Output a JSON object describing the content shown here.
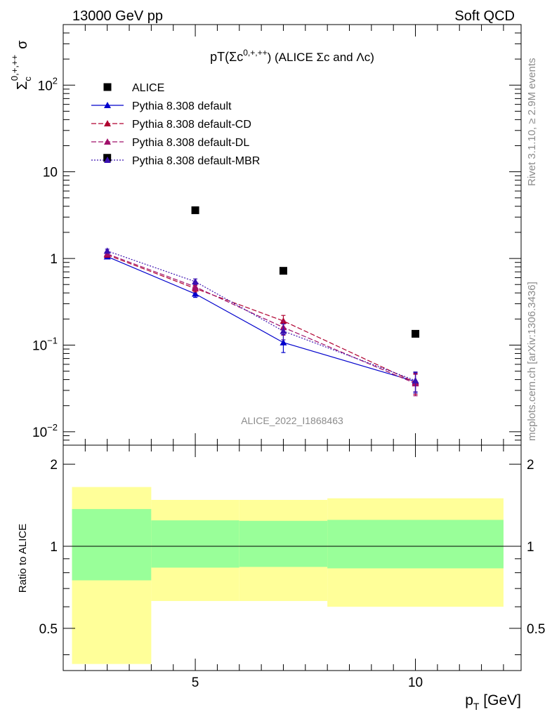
{
  "header": {
    "left": "13000 GeV pp",
    "right": "Soft QCD"
  },
  "side": {
    "rivet": "Rivet 3.1.10, ≥ 2.9M events",
    "mcplots": "mcplots.cern.ch [arXiv:1306.3436]"
  },
  "chart_data": [
    {
      "type": "scatter",
      "title": "pT(Σc0,+,++) (ALICE Σc and Λc)",
      "title_main": "pT(Σc",
      "title_sup": "0,+,++",
      "title_tail": ") (ALICE Σc and Λc)",
      "ylabel": "Σc0,+,++ σ",
      "ylabel_base": "Σ",
      "ylabel_sub": "c",
      "ylabel_sup": "0,+,++",
      "ylabel_tail": "σ",
      "xlabel": "",
      "yscale": "log",
      "xlim": [
        2,
        12.4
      ],
      "ylim": [
        0.007,
        500
      ],
      "watermark": "ALICE_2022_I1868463",
      "y_ticks": [
        {
          "v": 0.01,
          "base": "10",
          "exp": "−2"
        },
        {
          "v": 0.1,
          "base": "10",
          "exp": "−1"
        },
        {
          "v": 1,
          "base": "1",
          "exp": ""
        },
        {
          "v": 10,
          "base": "10",
          "exp": ""
        },
        {
          "v": 100,
          "base": "10",
          "exp": "2"
        }
      ],
      "legend_position": "top-left",
      "series": [
        {
          "name": "ALICE",
          "kind": "data",
          "color": "#000000",
          "marker": "square",
          "x": [
            3,
            5,
            7,
            10
          ],
          "y": [
            14.5,
            3.6,
            0.72,
            0.135
          ],
          "yerr": [
            0,
            0,
            0,
            0
          ]
        },
        {
          "name": "Pythia 8.308 default",
          "kind": "mc",
          "color": "#0000cc",
          "dash": "",
          "marker": "triangle",
          "x": [
            3,
            5,
            7,
            10
          ],
          "y": [
            1.05,
            0.39,
            0.107,
            0.038
          ],
          "yerr": [
            0.06,
            0.035,
            0.025,
            0.01
          ]
        },
        {
          "name": "Pythia 8.308 default-CD",
          "kind": "mc",
          "color": "#b00030",
          "dash": "7,3",
          "marker": "triangle",
          "x": [
            3,
            5,
            7,
            10
          ],
          "y": [
            1.1,
            0.45,
            0.19,
            0.037
          ],
          "yerr": [
            0.06,
            0.04,
            0.03,
            0.01
          ]
        },
        {
          "name": "Pythia 8.308 default-DL",
          "kind": "mc",
          "color": "#a0106a",
          "dash": "7,3",
          "marker": "triangle",
          "x": [
            3,
            5,
            7,
            10
          ],
          "y": [
            1.13,
            0.47,
            0.16,
            0.036
          ],
          "yerr": [
            0.06,
            0.04,
            0.03,
            0.01
          ]
        },
        {
          "name": "Pythia 8.308 default-MBR",
          "kind": "mc",
          "color": "#3a10b0",
          "dash": "2,2",
          "marker": "triangle",
          "x": [
            3,
            5,
            7,
            10
          ],
          "y": [
            1.22,
            0.54,
            0.145,
            0.039
          ],
          "yerr": [
            0.06,
            0.04,
            0.03,
            0.01
          ]
        }
      ]
    },
    {
      "type": "area",
      "title": "",
      "xlabel": "p_T [GeV]",
      "xlabel_main": "p",
      "xlabel_sub": "T",
      "xlabel_tail": " [GeV]",
      "ylabel": "Ratio to ALICE",
      "xlim": [
        2,
        12.4
      ],
      "ylim": [
        0.35,
        2.35
      ],
      "y_ticks": [
        0.5,
        1,
        2
      ],
      "y_tick_labels": [
        "0.5",
        "1",
        "2"
      ],
      "x_ticks": [
        5,
        10
      ],
      "x_tick_labels": [
        "5",
        "10"
      ],
      "reference_line": 1,
      "bands": [
        {
          "x0": 2.2,
          "x1": 4,
          "outer": [
            0.37,
            1.65
          ],
          "inner": [
            0.75,
            1.37
          ]
        },
        {
          "x0": 4,
          "x1": 6,
          "outer": [
            0.63,
            1.48
          ],
          "inner": [
            0.835,
            1.245
          ]
        },
        {
          "x0": 6,
          "x1": 8,
          "outer": [
            0.63,
            1.48
          ],
          "inner": [
            0.84,
            1.24
          ]
        },
        {
          "x0": 8,
          "x1": 12,
          "outer": [
            0.6,
            1.5
          ],
          "inner": [
            0.83,
            1.25
          ]
        }
      ],
      "band_colors": {
        "outer": "#ffff99",
        "inner": "#99ff99"
      }
    }
  ]
}
